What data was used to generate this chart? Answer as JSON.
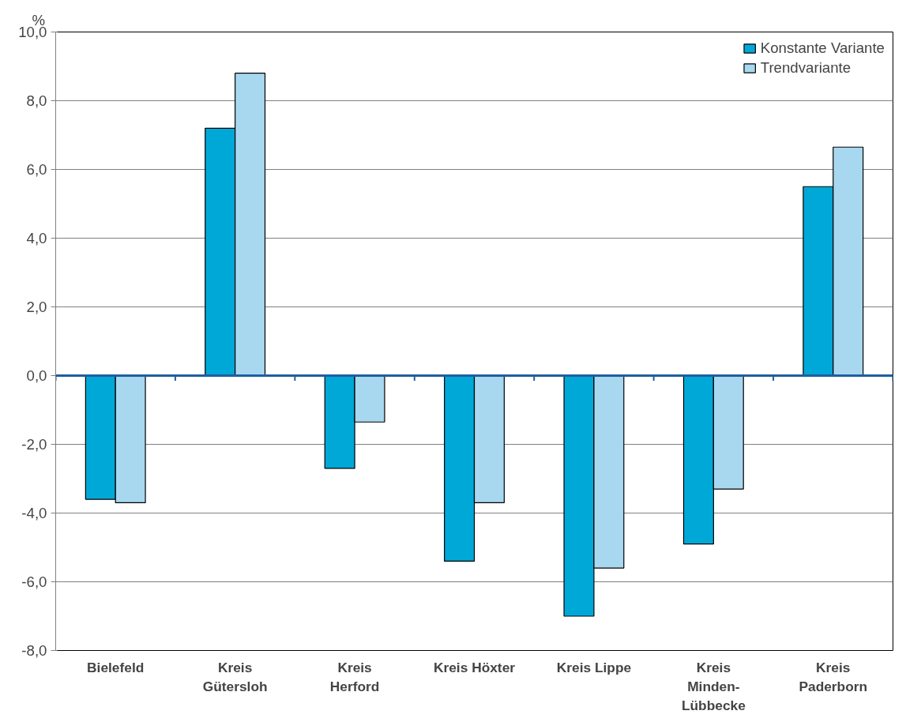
{
  "chart_data": {
    "type": "bar",
    "ylabel": "%",
    "categories": [
      "Bielefeld",
      "Kreis\nGütersloh",
      "Kreis\nHerford",
      "Kreis Höxter",
      "Kreis Lippe",
      "Kreis\nMinden-\nLübbecke",
      "Kreis\nPaderborn"
    ],
    "series": [
      {
        "name": "Konstante Variante",
        "color": "#00a8d8",
        "values": [
          -3.6,
          7.2,
          -2.7,
          -5.4,
          -7.0,
          -4.9,
          5.5
        ]
      },
      {
        "name": "Trendvariante",
        "color": "#a8d8f0",
        "values": [
          -3.7,
          8.8,
          -1.35,
          -3.7,
          -5.6,
          -3.3,
          6.65
        ]
      }
    ],
    "ylim": [
      -8,
      10
    ],
    "yticks": [
      {
        "value": -8,
        "label": "-8,0"
      },
      {
        "value": -6,
        "label": "-6,0"
      },
      {
        "value": -4,
        "label": "-4,0"
      },
      {
        "value": -2,
        "label": "-2,0"
      },
      {
        "value": 0,
        "label": "0,0"
      },
      {
        "value": 2,
        "label": "2,0"
      },
      {
        "value": 4,
        "label": "4,0"
      },
      {
        "value": 6,
        "label": "6,0"
      },
      {
        "value": 8,
        "label": "8,0"
      },
      {
        "value": 10,
        "label": "10,0"
      }
    ],
    "ref_lines": [
      {
        "axis": "y",
        "value": 0,
        "color": "#1f5fa0"
      }
    ],
    "grid": "y",
    "legend": "top right"
  }
}
